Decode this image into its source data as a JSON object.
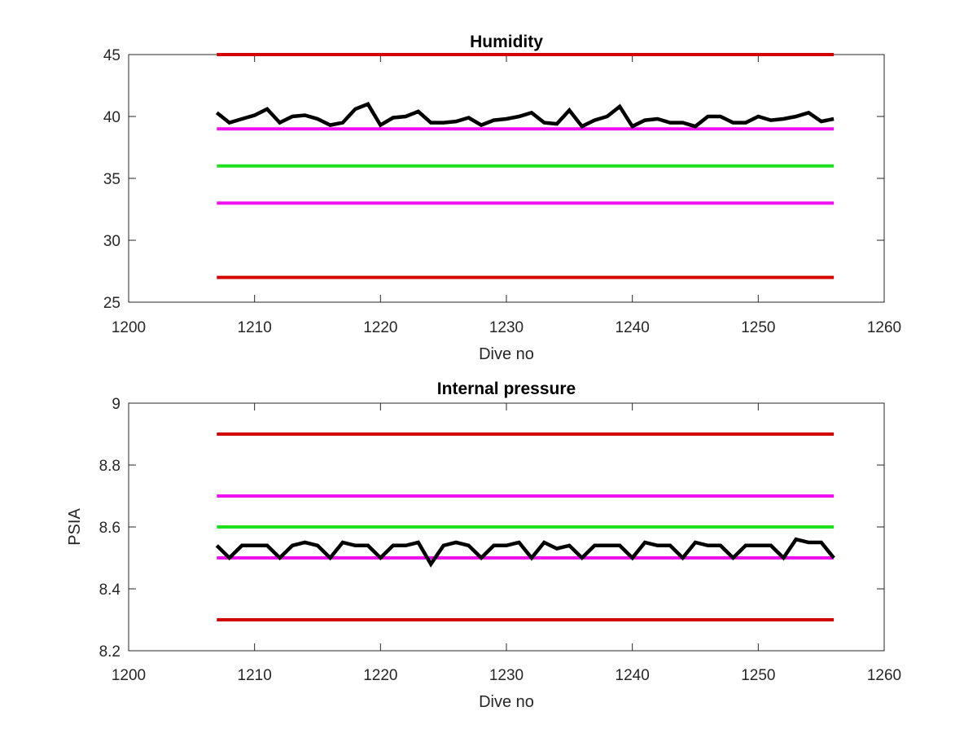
{
  "chart_data": [
    {
      "type": "line",
      "title": "Humidity",
      "xlabel": "Dive no",
      "ylabel": "",
      "xlim": [
        1200,
        1260
      ],
      "ylim": [
        25,
        45
      ],
      "xticks": [
        1200,
        1210,
        1220,
        1230,
        1240,
        1250,
        1260
      ],
      "yticks": [
        25,
        30,
        35,
        40,
        45
      ],
      "grid": false,
      "series": [
        {
          "color": "#d40000",
          "x": [
            1207,
            1256
          ],
          "y": [
            45,
            45
          ]
        },
        {
          "color": "#ee10ee",
          "x": [
            1207,
            1256
          ],
          "y": [
            39,
            39
          ]
        },
        {
          "color": "#1fe01f",
          "x": [
            1207,
            1256
          ],
          "y": [
            36,
            36
          ]
        },
        {
          "color": "#ee10ee",
          "x": [
            1207,
            1256
          ],
          "y": [
            33,
            33
          ]
        },
        {
          "color": "#d40000",
          "x": [
            1207,
            1256
          ],
          "y": [
            27,
            27
          ]
        },
        {
          "color": "#000000",
          "x": [
            1207,
            1208,
            1209,
            1210,
            1211,
            1212,
            1213,
            1214,
            1215,
            1216,
            1217,
            1218,
            1219,
            1220,
            1221,
            1222,
            1223,
            1224,
            1225,
            1226,
            1227,
            1228,
            1229,
            1230,
            1231,
            1232,
            1233,
            1234,
            1235,
            1236,
            1237,
            1238,
            1239,
            1240,
            1241,
            1242,
            1243,
            1244,
            1245,
            1246,
            1247,
            1248,
            1249,
            1250,
            1251,
            1252,
            1253,
            1254,
            1255,
            1256
          ],
          "y": [
            40.3,
            39.5,
            39.8,
            40.1,
            40.6,
            39.5,
            40.0,
            40.1,
            39.8,
            39.3,
            39.5,
            40.6,
            41.0,
            39.3,
            39.9,
            40.0,
            40.4,
            39.5,
            39.5,
            39.6,
            39.9,
            39.3,
            39.7,
            39.8,
            40.0,
            40.3,
            39.5,
            39.4,
            40.5,
            39.2,
            39.7,
            40.0,
            40.8,
            39.2,
            39.7,
            39.8,
            39.5,
            39.5,
            39.2,
            40.0,
            40.0,
            39.5,
            39.5,
            40.0,
            39.7,
            39.8,
            40.0,
            40.3,
            39.6,
            39.8
          ]
        }
      ]
    },
    {
      "type": "line",
      "title": "Internal pressure",
      "xlabel": "Dive no",
      "ylabel": "PSIA",
      "xlim": [
        1200,
        1260
      ],
      "ylim": [
        8.2,
        9
      ],
      "xticks": [
        1200,
        1210,
        1220,
        1230,
        1240,
        1250,
        1260
      ],
      "yticks": [
        8.2,
        8.4,
        8.6,
        8.8,
        9
      ],
      "grid": false,
      "series": [
        {
          "color": "#d40000",
          "x": [
            1207,
            1256
          ],
          "y": [
            8.9,
            8.9
          ]
        },
        {
          "color": "#ee10ee",
          "x": [
            1207,
            1256
          ],
          "y": [
            8.7,
            8.7
          ]
        },
        {
          "color": "#1fe01f",
          "x": [
            1207,
            1256
          ],
          "y": [
            8.6,
            8.6
          ]
        },
        {
          "color": "#ee10ee",
          "x": [
            1207,
            1256
          ],
          "y": [
            8.5,
            8.5
          ]
        },
        {
          "color": "#d40000",
          "x": [
            1207,
            1256
          ],
          "y": [
            8.3,
            8.3
          ]
        },
        {
          "color": "#000000",
          "x": [
            1207,
            1208,
            1209,
            1210,
            1211,
            1212,
            1213,
            1214,
            1215,
            1216,
            1217,
            1218,
            1219,
            1220,
            1221,
            1222,
            1223,
            1224,
            1225,
            1226,
            1227,
            1228,
            1229,
            1230,
            1231,
            1232,
            1233,
            1234,
            1235,
            1236,
            1237,
            1238,
            1239,
            1240,
            1241,
            1242,
            1243,
            1244,
            1245,
            1246,
            1247,
            1248,
            1249,
            1250,
            1251,
            1252,
            1253,
            1254,
            1255,
            1256
          ],
          "y": [
            8.54,
            8.5,
            8.54,
            8.54,
            8.54,
            8.5,
            8.54,
            8.55,
            8.54,
            8.5,
            8.55,
            8.54,
            8.54,
            8.5,
            8.54,
            8.54,
            8.55,
            8.48,
            8.54,
            8.55,
            8.54,
            8.5,
            8.54,
            8.54,
            8.55,
            8.5,
            8.55,
            8.53,
            8.54,
            8.5,
            8.54,
            8.54,
            8.54,
            8.5,
            8.55,
            8.54,
            8.54,
            8.5,
            8.55,
            8.54,
            8.54,
            8.5,
            8.54,
            8.54,
            8.54,
            8.5,
            8.56,
            8.55,
            8.55,
            8.5
          ]
        }
      ]
    }
  ]
}
